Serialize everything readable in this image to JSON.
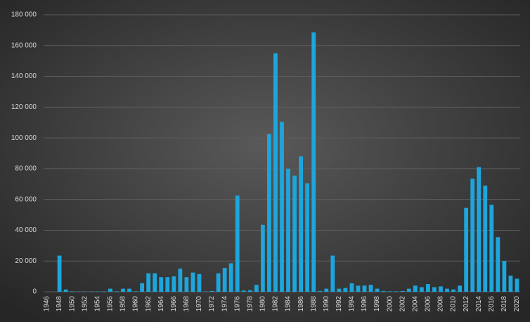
{
  "chart_data": {
    "type": "bar",
    "categories": [
      "1946",
      null,
      "1948",
      null,
      "1950",
      null,
      "1952",
      null,
      "1954",
      null,
      "1956",
      null,
      "1958",
      null,
      "1960",
      null,
      "1962",
      null,
      "1964",
      null,
      "1966",
      null,
      "1968",
      null,
      "1970",
      null,
      "1972",
      null,
      "1974",
      null,
      "1976",
      null,
      "1978",
      null,
      "1980",
      null,
      "1982",
      null,
      "1984",
      null,
      "1986",
      null,
      "1988",
      null,
      "1990",
      null,
      "1992",
      null,
      "1994",
      null,
      "1996",
      null,
      "1998",
      null,
      "2000",
      null,
      "2002",
      null,
      "2004",
      null,
      "2006",
      null,
      "2008",
      null,
      "2010",
      null,
      "2012",
      null,
      "2014",
      null,
      "2016",
      null,
      "2018",
      null,
      "2020"
    ],
    "values": [
      0,
      0,
      23500,
      1500,
      300,
      200,
      200,
      200,
      200,
      200,
      2000,
      300,
      2000,
      2000,
      300,
      5500,
      12000,
      12000,
      9500,
      9500,
      10000,
      15000,
      9500,
      12500,
      11500,
      200,
      500,
      12000,
      15500,
      18500,
      62500,
      800,
      1000,
      4500,
      43500,
      102500,
      155000,
      110500,
      80000,
      75500,
      88000,
      70500,
      168500,
      500,
      2000,
      23500,
      2000,
      2500,
      5500,
      4000,
      4000,
      4500,
      2000,
      500,
      300,
      300,
      500,
      2000,
      4000,
      3000,
      5000,
      3000,
      3500,
      2000,
      1500,
      4000,
      54500,
      73500,
      81000,
      69000,
      56500,
      35500,
      20000,
      10500,
      8500
    ],
    "color": "#1ea5dc",
    "ylim": [
      0,
      180000
    ],
    "yticks": [
      {
        "value": 0,
        "label": "0"
      },
      {
        "value": 20000,
        "label": "20 000"
      },
      {
        "value": 40000,
        "label": "40 000"
      },
      {
        "value": 60000,
        "label": "60 000"
      },
      {
        "value": 80000,
        "label": "80 000"
      },
      {
        "value": 100000,
        "label": "100 000"
      },
      {
        "value": 120000,
        "label": "120 000"
      },
      {
        "value": 140000,
        "label": "140 000"
      },
      {
        "value": 160000,
        "label": "160 000"
      },
      {
        "value": 180000,
        "label": "180 000"
      }
    ],
    "grid": true
  }
}
